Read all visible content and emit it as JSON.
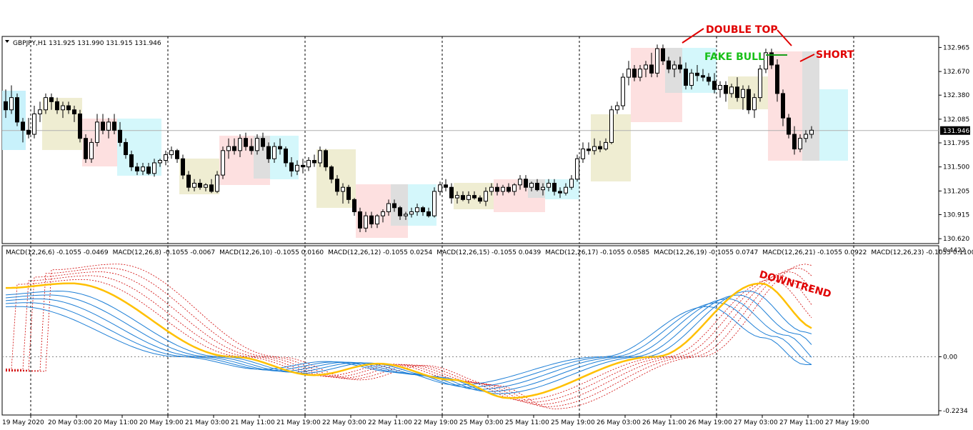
{
  "chart_data": {
    "type": "candlestick",
    "symbol_header": "GBPJPY,H1  131.925 131.990 131.915 131.946",
    "current_price_label": "131.946",
    "current_price": 131.946,
    "price_axis": {
      "ylim": [
        130.56,
        133.1
      ],
      "ticks": [
        "132.965",
        "132.670",
        "132.380",
        "132.085",
        "131.795",
        "131.500",
        "131.205",
        "130.915",
        "130.620"
      ]
    },
    "macd_axis": {
      "ylim": [
        -0.2234,
        0.4422
      ],
      "ticks": [
        "0.4422",
        "0.00",
        "-0.2234"
      ]
    },
    "macd_header": [
      "MACD(12,26,6) -0.1055 -0.0469",
      "MACD(12,26,8) -0.1055 -0.0067",
      "MACD(12,26,10) -0.1055 0.0160",
      "MACD(12,26,12) -0.1055 0.0254",
      "MACD(12,26,15) -0.1055 0.0439",
      "MACD(12,26,17) -0.1055 0.0585",
      "MACD(12,26,19) -0.1055 0.0747",
      "MACD(12,26,21) -0.1055 0.0922",
      "MACD(12,26,23) -0.1055 0.1100"
    ],
    "time_labels": [
      "19 May 2020",
      "20 May 03:00",
      "20 May 11:00",
      "20 May 19:00",
      "21 May 03:00",
      "21 May 11:00",
      "21 May 19:00",
      "22 May 03:00",
      "22 May 11:00",
      "22 May 19:00",
      "25 May 03:00",
      "25 May 11:00",
      "25 May 19:00",
      "26 May 03:00",
      "26 May 11:00",
      "26 May 19:00",
      "27 May 03:00",
      "27 May 11:00",
      "27 May 19:00"
    ],
    "candles_ohlc": [
      [
        132.3,
        132.45,
        132.1,
        132.2
      ],
      [
        132.2,
        132.5,
        132.15,
        132.35
      ],
      [
        132.35,
        132.4,
        132.0,
        132.05
      ],
      [
        132.05,
        132.1,
        131.8,
        131.95
      ],
      [
        131.95,
        132.1,
        131.85,
        131.9
      ],
      [
        131.9,
        132.25,
        131.85,
        132.15
      ],
      [
        132.15,
        132.3,
        132.05,
        132.2
      ],
      [
        132.2,
        132.4,
        132.15,
        132.35
      ],
      [
        132.35,
        132.4,
        132.2,
        132.3
      ],
      [
        132.3,
        132.35,
        132.15,
        132.2
      ],
      [
        132.2,
        132.3,
        132.1,
        132.25
      ],
      [
        132.25,
        132.3,
        132.15,
        132.2
      ],
      [
        132.2,
        132.25,
        132.05,
        132.15
      ],
      [
        132.15,
        132.2,
        131.8,
        131.85
      ],
      [
        131.85,
        131.9,
        131.55,
        131.6
      ],
      [
        131.6,
        131.85,
        131.55,
        131.8
      ],
      [
        131.8,
        132.15,
        131.75,
        132.05
      ],
      [
        132.05,
        132.15,
        131.9,
        131.95
      ],
      [
        131.95,
        132.1,
        131.85,
        132.05
      ],
      [
        132.05,
        132.15,
        131.9,
        131.95
      ],
      [
        131.95,
        132.05,
        131.75,
        131.8
      ],
      [
        131.8,
        131.85,
        131.6,
        131.65
      ],
      [
        131.65,
        131.7,
        131.45,
        131.5
      ],
      [
        131.5,
        131.55,
        131.4,
        131.45
      ],
      [
        131.45,
        131.55,
        131.4,
        131.5
      ],
      [
        131.5,
        131.55,
        131.4,
        131.42
      ],
      [
        131.42,
        131.6,
        131.38,
        131.55
      ],
      [
        131.55,
        131.6,
        131.5,
        131.58
      ],
      [
        131.58,
        131.7,
        131.52,
        131.65
      ],
      [
        131.65,
        131.75,
        131.6,
        131.7
      ],
      [
        131.7,
        131.72,
        131.55,
        131.6
      ],
      [
        131.6,
        131.65,
        131.35,
        131.4
      ],
      [
        131.4,
        131.45,
        131.2,
        131.25
      ],
      [
        131.25,
        131.35,
        131.2,
        131.3
      ],
      [
        131.3,
        131.35,
        131.22,
        131.25
      ],
      [
        131.25,
        131.3,
        131.2,
        131.28
      ],
      [
        131.28,
        131.35,
        131.18,
        131.2
      ],
      [
        131.2,
        131.45,
        131.18,
        131.4
      ],
      [
        131.4,
        131.75,
        131.35,
        131.7
      ],
      [
        131.7,
        131.85,
        131.6,
        131.75
      ],
      [
        131.75,
        131.85,
        131.65,
        131.7
      ],
      [
        131.7,
        131.9,
        131.62,
        131.85
      ],
      [
        131.85,
        131.92,
        131.7,
        131.75
      ],
      [
        131.75,
        131.85,
        131.65,
        131.7
      ],
      [
        131.7,
        131.9,
        131.65,
        131.85
      ],
      [
        131.85,
        131.92,
        131.7,
        131.75
      ],
      [
        131.75,
        131.8,
        131.55,
        131.6
      ],
      [
        131.6,
        131.8,
        131.55,
        131.75
      ],
      [
        131.75,
        131.85,
        131.65,
        131.72
      ],
      [
        131.72,
        131.75,
        131.5,
        131.55
      ],
      [
        131.55,
        131.62,
        131.38,
        131.45
      ],
      [
        131.45,
        131.58,
        131.4,
        131.52
      ],
      [
        131.52,
        131.6,
        131.42,
        131.5
      ],
      [
        131.5,
        131.62,
        131.45,
        131.58
      ],
      [
        131.58,
        131.65,
        131.5,
        131.55
      ],
      [
        131.55,
        131.75,
        131.5,
        131.7
      ],
      [
        131.7,
        131.72,
        131.45,
        131.5
      ],
      [
        131.5,
        131.52,
        131.3,
        131.35
      ],
      [
        131.35,
        131.4,
        131.15,
        131.2
      ],
      [
        131.2,
        131.3,
        131.05,
        131.25
      ],
      [
        131.25,
        131.28,
        131.05,
        131.1
      ],
      [
        131.1,
        131.12,
        130.9,
        130.95
      ],
      [
        130.95,
        131.0,
        130.7,
        130.75
      ],
      [
        130.75,
        130.95,
        130.7,
        130.9
      ],
      [
        130.9,
        130.95,
        130.75,
        130.8
      ],
      [
        130.8,
        130.92,
        130.75,
        130.9
      ],
      [
        130.9,
        130.98,
        130.82,
        130.95
      ],
      [
        130.95,
        131.1,
        130.9,
        131.05
      ],
      [
        131.05,
        131.1,
        130.95,
        131.0
      ],
      [
        131.0,
        131.02,
        130.85,
        130.9
      ],
      [
        130.9,
        130.95,
        130.85,
        130.92
      ],
      [
        130.92,
        131.0,
        130.88,
        130.95
      ],
      [
        130.95,
        131.05,
        130.9,
        131.0
      ],
      [
        131.0,
        131.02,
        130.9,
        130.95
      ],
      [
        130.95,
        131.0,
        130.88,
        130.9
      ],
      [
        130.9,
        131.25,
        130.88,
        131.2
      ],
      [
        131.2,
        131.32,
        131.15,
        131.28
      ],
      [
        131.28,
        131.35,
        131.2,
        131.25
      ],
      [
        131.25,
        131.3,
        131.05,
        131.12
      ],
      [
        131.12,
        131.2,
        131.05,
        131.15
      ],
      [
        131.15,
        131.2,
        131.08,
        131.1
      ],
      [
        131.1,
        131.2,
        131.05,
        131.15
      ],
      [
        131.15,
        131.2,
        131.1,
        131.12
      ],
      [
        131.12,
        131.15,
        131.05,
        131.08
      ],
      [
        131.08,
        131.25,
        131.02,
        131.2
      ],
      [
        131.2,
        131.3,
        131.15,
        131.25
      ],
      [
        131.25,
        131.3,
        131.15,
        131.2
      ],
      [
        131.2,
        131.28,
        131.15,
        131.25
      ],
      [
        131.25,
        131.3,
        131.18,
        131.2
      ],
      [
        131.2,
        131.3,
        131.15,
        131.28
      ],
      [
        131.28,
        131.4,
        131.22,
        131.35
      ],
      [
        131.35,
        131.4,
        131.2,
        131.25
      ],
      [
        131.25,
        131.32,
        131.2,
        131.3
      ],
      [
        131.3,
        131.35,
        131.2,
        131.22
      ],
      [
        131.22,
        131.3,
        131.15,
        131.25
      ],
      [
        131.25,
        131.35,
        131.2,
        131.3
      ],
      [
        131.3,
        131.35,
        131.15,
        131.2
      ],
      [
        131.2,
        131.25,
        131.12,
        131.18
      ],
      [
        131.18,
        131.3,
        131.15,
        131.25
      ],
      [
        131.25,
        131.4,
        131.22,
        131.35
      ],
      [
        131.35,
        131.65,
        131.32,
        131.6
      ],
      [
        131.6,
        131.8,
        131.55,
        131.72
      ],
      [
        131.72,
        131.8,
        131.65,
        131.7
      ],
      [
        131.7,
        131.85,
        131.65,
        131.75
      ],
      [
        131.75,
        131.82,
        131.68,
        131.72
      ],
      [
        131.72,
        131.85,
        131.7,
        131.8
      ],
      [
        131.8,
        132.25,
        131.78,
        132.2
      ],
      [
        132.2,
        132.3,
        132.15,
        132.25
      ],
      [
        132.25,
        132.65,
        132.2,
        132.6
      ],
      [
        132.6,
        132.8,
        132.5,
        132.7
      ],
      [
        132.7,
        132.75,
        132.55,
        132.6
      ],
      [
        132.6,
        132.75,
        132.55,
        132.7
      ],
      [
        132.7,
        132.8,
        132.6,
        132.75
      ],
      [
        132.75,
        132.9,
        132.6,
        132.65
      ],
      [
        132.65,
        133.0,
        132.6,
        132.95
      ],
      [
        132.95,
        133.0,
        132.75,
        132.8
      ],
      [
        132.8,
        132.85,
        132.65,
        132.7
      ],
      [
        132.7,
        132.8,
        132.6,
        132.75
      ],
      [
        132.75,
        132.85,
        132.65,
        132.7
      ],
      [
        132.7,
        132.78,
        132.45,
        132.5
      ],
      [
        132.5,
        132.7,
        132.45,
        132.65
      ],
      [
        132.65,
        132.75,
        132.55,
        132.62
      ],
      [
        132.62,
        132.7,
        132.55,
        132.6
      ],
      [
        132.6,
        132.65,
        132.5,
        132.55
      ],
      [
        132.55,
        132.65,
        132.4,
        132.45
      ],
      [
        132.45,
        132.55,
        132.35,
        132.5
      ],
      [
        132.5,
        132.55,
        132.3,
        132.4
      ],
      [
        132.4,
        132.52,
        132.35,
        132.48
      ],
      [
        132.48,
        132.6,
        132.3,
        132.35
      ],
      [
        132.35,
        132.5,
        132.2,
        132.45
      ],
      [
        132.45,
        132.5,
        132.15,
        132.2
      ],
      [
        132.2,
        132.4,
        132.1,
        132.35
      ],
      [
        132.35,
        132.75,
        132.3,
        132.7
      ],
      [
        132.7,
        132.95,
        132.65,
        132.9
      ],
      [
        132.9,
        132.95,
        132.7,
        132.75
      ],
      [
        132.75,
        132.82,
        132.3,
        132.4
      ],
      [
        132.4,
        132.45,
        132.0,
        132.1
      ],
      [
        132.1,
        132.15,
        131.85,
        131.9
      ],
      [
        131.9,
        132.0,
        131.65,
        131.72
      ],
      [
        131.72,
        131.9,
        131.68,
        131.85
      ],
      [
        131.85,
        131.95,
        131.8,
        131.9
      ],
      [
        131.9,
        132.0,
        131.85,
        131.95
      ]
    ],
    "macd_signal_periods": [
      6,
      8,
      10,
      12,
      15,
      17,
      19,
      21,
      23
    ],
    "series_colors": {
      "macd_main": "#ffc000",
      "signal_fast": "#d00000",
      "signal_slow": "#1e7fd6",
      "bull": "#ffffff",
      "bear": "#000000",
      "up_wick": "#000000"
    },
    "annotations": [
      {
        "text": "DOUBLE TOP",
        "color": "#e00000"
      },
      {
        "text": "FAKE BULL",
        "color": "#19c019"
      },
      {
        "text": "SHORT",
        "color": "#e00000"
      },
      {
        "text": "DOWNTREND",
        "color": "#e00000"
      }
    ]
  }
}
